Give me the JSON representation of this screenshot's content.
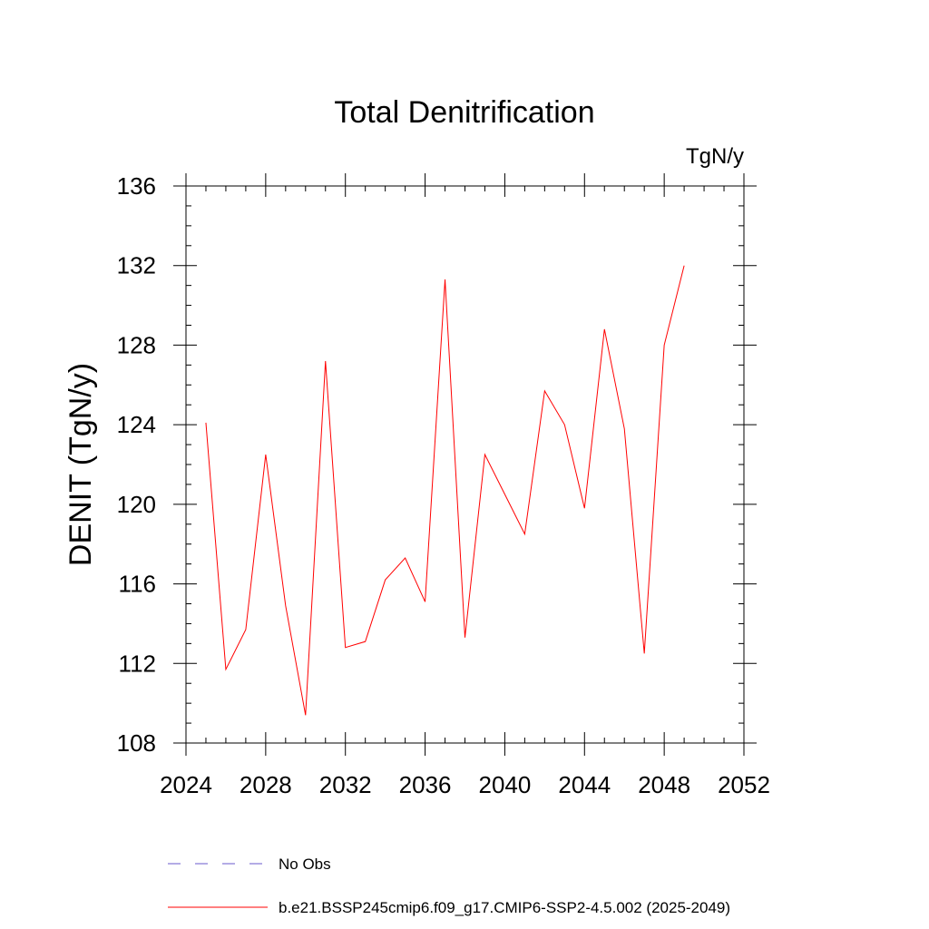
{
  "chart_data": {
    "type": "line",
    "title": "Total Denitrification",
    "units_label": "TgN/y",
    "xlabel": "",
    "ylabel": "DENIT  (TgN/y)",
    "xlim": [
      2024,
      2052
    ],
    "ylim": [
      108,
      136
    ],
    "x_ticks": [
      2024,
      2028,
      2032,
      2036,
      2040,
      2044,
      2048,
      2052
    ],
    "y_ticks": [
      108,
      112,
      116,
      120,
      124,
      128,
      132,
      136
    ],
    "x_minor_step": 1,
    "y_minor_step": 1,
    "grid": false,
    "series": [
      {
        "name": "b.e21.BSSP245cmip6.f09_g17.CMIP6-SSP2-4.5.002 (2025-2049)",
        "color": "#ff0000",
        "style": "solid",
        "x": [
          2025,
          2026,
          2027,
          2028,
          2029,
          2030,
          2031,
          2032,
          2033,
          2034,
          2035,
          2036,
          2037,
          2038,
          2039,
          2040,
          2041,
          2042,
          2043,
          2044,
          2045,
          2046,
          2047,
          2048,
          2049
        ],
        "values": [
          124.1,
          111.7,
          113.7,
          122.5,
          114.9,
          109.4,
          127.2,
          112.8,
          113.1,
          116.2,
          117.3,
          115.1,
          131.3,
          113.3,
          122.5,
          120.5,
          118.5,
          125.7,
          124.0,
          119.8,
          128.8,
          123.8,
          112.5,
          128.0,
          132.0
        ]
      }
    ],
    "legend": [
      {
        "label": "No Obs",
        "color": "#6a5acd",
        "style": "dashed"
      },
      {
        "label": "b.e21.BSSP245cmip6.f09_g17.CMIP6-SSP2-4.5.002 (2025-2049)",
        "color": "#ff0000",
        "style": "solid"
      }
    ],
    "legend_position": "bottom-left"
  }
}
